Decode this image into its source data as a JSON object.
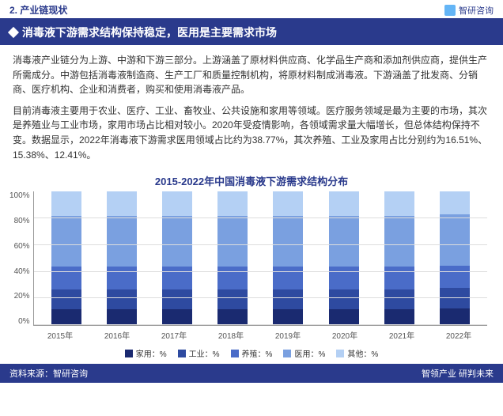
{
  "header": {
    "section": "2. 产业链现状",
    "brand": "智研咨询"
  },
  "subtitle": "消毒液下游需求结构保持稳定，医用是主要需求市场",
  "paragraphs": [
    "消毒液产业链分为上游、中游和下游三部分。上游涵盖了原材料供应商、化学品生产商和添加剂供应商，提供生产所需成分。中游包括消毒液制造商、生产工厂和质量控制机构，将原材料制成消毒液。下游涵盖了批发商、分销商、医疗机构、企业和消费者，购买和使用消毒液产品。",
    "目前消毒液主要用于农业、医疗、工业、畜牧业、公共设施和家用等领域。医疗服务领域是最为主要的市场，其次是养殖业与工业市场，家用市场占比相对较小。2020年受疫情影响，各领域需求量大幅增长，但总体结构保持不变。数据显示，2022年消毒液下游需求医用领域占比约为38.77%，其次养殖、工业及家用占比分别约为16.51%、15.38%、12.41%。"
  ],
  "chart": {
    "title": "2015-2022年中国消毒液下游需求结构分布",
    "type": "stacked-bar-100",
    "categories": [
      "2015年",
      "2016年",
      "2017年",
      "2018年",
      "2019年",
      "2020年",
      "2021年",
      "2022年"
    ],
    "series": [
      {
        "name": "家用：%",
        "color": "#1a2a70",
        "values": [
          12,
          12,
          12,
          12,
          12,
          12,
          12,
          12.41
        ]
      },
      {
        "name": "工业：%",
        "color": "#2e4aa0",
        "values": [
          15,
          15,
          15,
          15,
          15,
          15,
          15,
          15.38
        ]
      },
      {
        "name": "养殖：%",
        "color": "#4a6cc8",
        "values": [
          17,
          17,
          17,
          17,
          17,
          17,
          17,
          16.51
        ]
      },
      {
        "name": "医用：%",
        "color": "#7aa0e0",
        "values": [
          38,
          38,
          38,
          38,
          38,
          38,
          38,
          38.77
        ]
      },
      {
        "name": "其他：%",
        "color": "#b4d0f4",
        "values": [
          18,
          18,
          18,
          18,
          18,
          18,
          18,
          16.93
        ]
      }
    ],
    "yticks": [
      "100%",
      "80%",
      "60%",
      "40%",
      "20%",
      "0%"
    ],
    "ylim": [
      0,
      100
    ],
    "grid_color": "#dddddd",
    "background": "#ffffff",
    "title_color": "#2a3a8c",
    "title_fontsize": 13,
    "axis_fontsize": 10
  },
  "footer": {
    "source": "资料来源：智研咨询",
    "slogan": "智领产业 研判未来"
  }
}
